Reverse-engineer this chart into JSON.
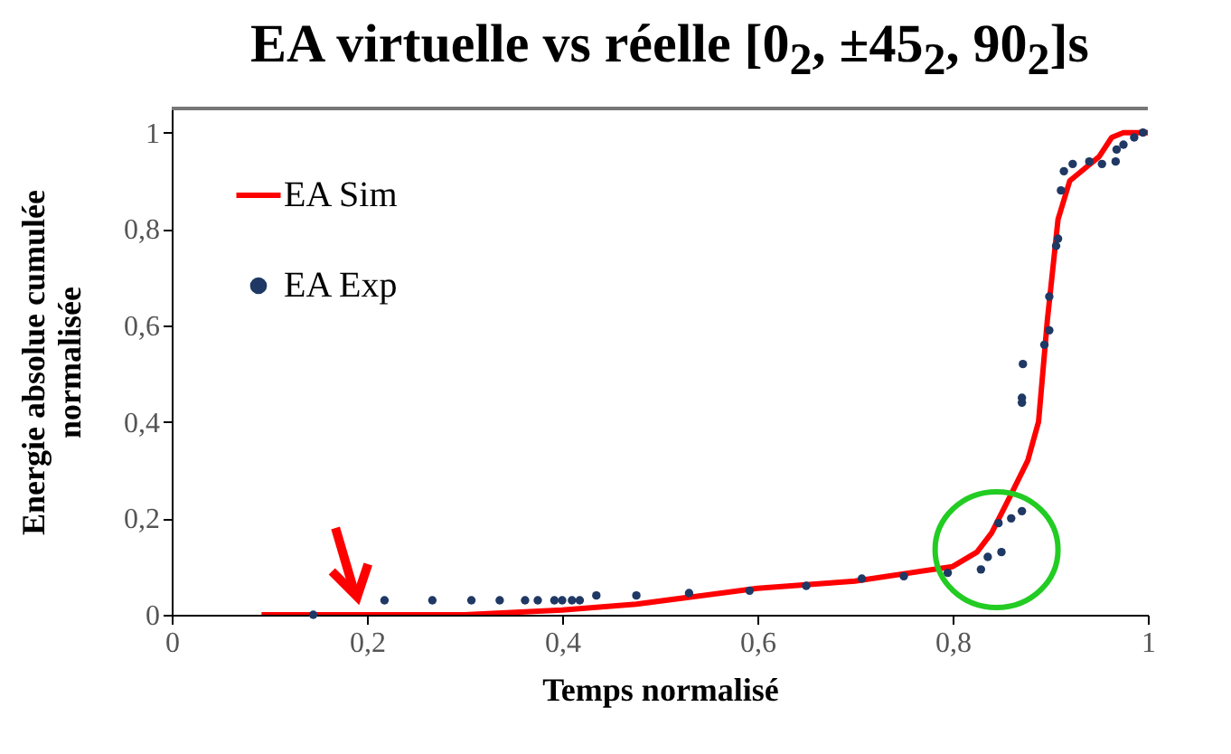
{
  "chart_data": {
    "type": "line",
    "title": "EA virtuelle vs réelle [0$_{2}$, ±45$_{2}$, 90$_{2}$]s",
    "xlabel": "Temps normalisé",
    "ylabel": "Energie absolue cumulée normalisée",
    "xlim": [
      0,
      1
    ],
    "ylim": [
      0,
      1.05
    ],
    "xticks": [
      {
        "value": 0,
        "label": "0"
      },
      {
        "value": 0.2,
        "label": "0,2"
      },
      {
        "value": 0.4,
        "label": "0,4"
      },
      {
        "value": 0.6,
        "label": "0,6"
      },
      {
        "value": 0.8,
        "label": "0,8"
      },
      {
        "value": 1,
        "label": "1"
      }
    ],
    "yticks": [
      {
        "value": 0,
        "label": "0"
      },
      {
        "value": 0.2,
        "label": "0,2"
      },
      {
        "value": 0.4,
        "label": "0,4"
      },
      {
        "value": 0.6,
        "label": "0,6"
      },
      {
        "value": 0.8,
        "label": "0,8"
      },
      {
        "value": 1,
        "label": "1"
      }
    ],
    "grid": false,
    "legend": "top left",
    "series": [
      {
        "name": "EA Sim",
        "type": "line",
        "color": "#ff0000",
        "line_style": "solid",
        "x": [
          0.092,
          0.2,
          0.3,
          0.4,
          0.476,
          0.6,
          0.7,
          0.8,
          0.825,
          0.84,
          0.86,
          0.877,
          0.888,
          0.897,
          0.908,
          0.92,
          0.938,
          0.95,
          0.963,
          0.975,
          1
        ],
        "values": [
          0,
          0,
          0,
          0.01,
          0.022,
          0.055,
          0.07,
          0.1,
          0.13,
          0.17,
          0.25,
          0.32,
          0.4,
          0.61,
          0.82,
          0.9,
          0.93,
          0.95,
          0.99,
          1,
          1
        ]
      },
      {
        "name": "EA Exp",
        "type": "scatter",
        "color": "#1f3864",
        "marker": "circle",
        "x": [
          0.145,
          0.218,
          0.267,
          0.307,
          0.336,
          0.362,
          0.375,
          0.392,
          0.4,
          0.41,
          0.418,
          0.435,
          0.476,
          0.53,
          0.592,
          0.65,
          0.707,
          0.75,
          0.795,
          0.829,
          0.836,
          0.85,
          0.847,
          0.86,
          0.871,
          0.871,
          0.871,
          0.872,
          0.894,
          0.899,
          0.899,
          0.906,
          0.908,
          0.911,
          0.914,
          0.923,
          0.94,
          0.953,
          0.967,
          0.968,
          0.975,
          0.986,
          0.995
        ],
        "values": [
          0,
          0.03,
          0.03,
          0.03,
          0.03,
          0.03,
          0.03,
          0.03,
          0.03,
          0.03,
          0.03,
          0.04,
          0.04,
          0.045,
          0.05,
          0.06,
          0.075,
          0.08,
          0.087,
          0.094,
          0.12,
          0.13,
          0.19,
          0.2,
          0.215,
          0.44,
          0.45,
          0.52,
          0.56,
          0.59,
          0.66,
          0.765,
          0.78,
          0.88,
          0.92,
          0.935,
          0.94,
          0.935,
          0.94,
          0.965,
          0.975,
          0.99,
          1
        ]
      }
    ]
  }
}
